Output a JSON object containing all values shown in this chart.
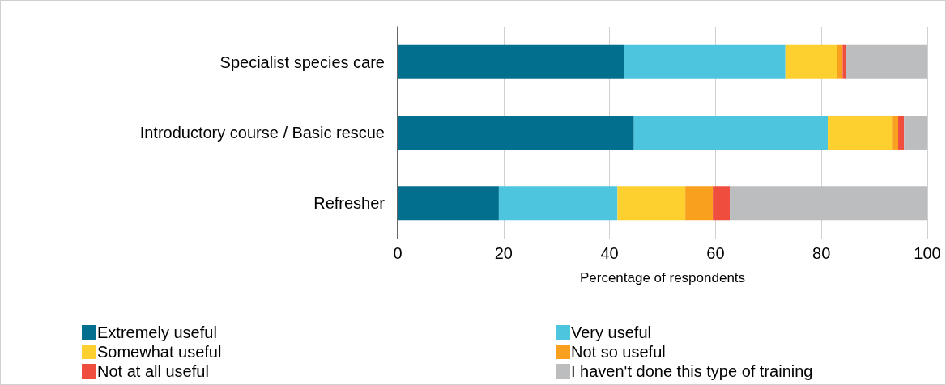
{
  "chart_data": {
    "type": "bar",
    "orientation": "horizontal",
    "stacked": true,
    "categories": [
      "Specialist species care",
      "Introductory course / Basic rescue",
      "Refresher"
    ],
    "series": [
      {
        "name": "Extremely useful",
        "color": "#026f8e",
        "values": [
          42.7,
          44.6,
          19.1
        ]
      },
      {
        "name": "Very useful",
        "color": "#4ec5df",
        "values": [
          30.5,
          36.6,
          22.4
        ]
      },
      {
        "name": "Somewhat useful",
        "color": "#fdd02f",
        "values": [
          9.8,
          12.1,
          12.8
        ]
      },
      {
        "name": "Not so useful",
        "color": "#f9a11f",
        "values": [
          1.0,
          1.2,
          5.2
        ]
      },
      {
        "name": "Not at all useful",
        "color": "#ef4e3e",
        "values": [
          0.7,
          1.1,
          3.2
        ]
      },
      {
        "name": "I haven't done this type of training",
        "color": "#bcbdbf",
        "values": [
          15.3,
          4.4,
          37.3
        ]
      }
    ],
    "xlabel": "Percentage of respondents",
    "xlim": [
      0,
      100
    ],
    "xticks": [
      0,
      20,
      40,
      60,
      80,
      100
    ],
    "grid": "x",
    "legend": "bottom"
  }
}
